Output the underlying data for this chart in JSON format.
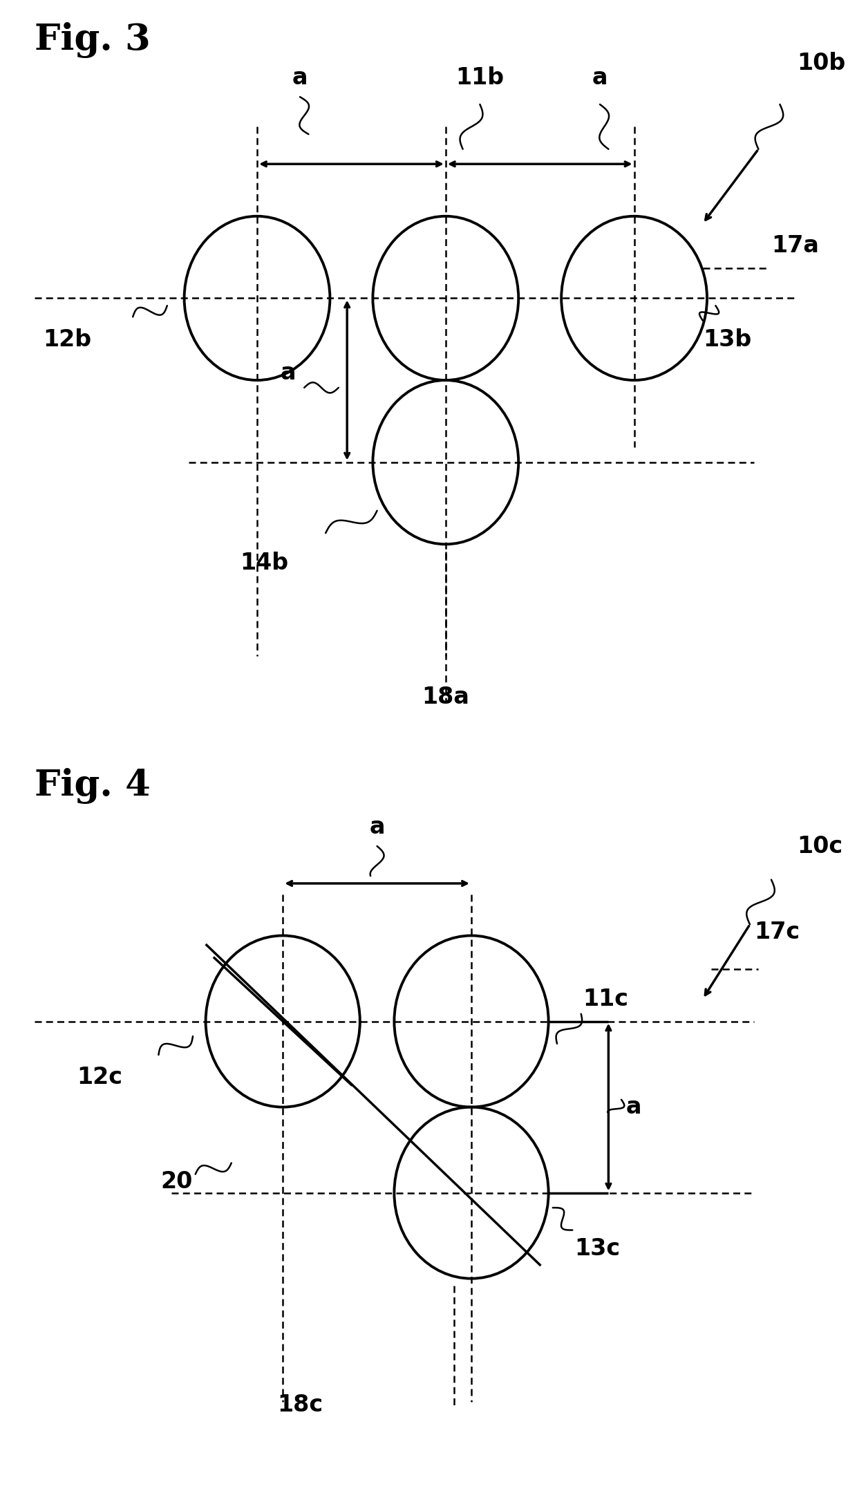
{
  "fig3": {
    "title": "Fig. 3",
    "label_10b": "10b",
    "label_11b": "11b",
    "label_12b": "12b",
    "label_13b": "13b",
    "label_14b": "14b",
    "label_17a": "17a",
    "label_18a": "18a",
    "label_a_left": "a",
    "label_a_right": "a",
    "label_a_vert": "a"
  },
  "fig4": {
    "title": "Fig. 4",
    "label_10c": "10c",
    "label_11c": "11c",
    "label_12c": "12c",
    "label_13c": "13c",
    "label_17c": "17c",
    "label_18c": "18c",
    "label_20": "20",
    "label_a_horiz": "a",
    "label_a_vert": "a"
  },
  "bg": "#ffffff",
  "lc": "#000000",
  "lw_circle": 2.8,
  "lw_arrow": 2.5,
  "lw_dash": 1.8,
  "lw_diag": 2.5,
  "font_title": 38,
  "font_label": 24,
  "font_small": 22
}
